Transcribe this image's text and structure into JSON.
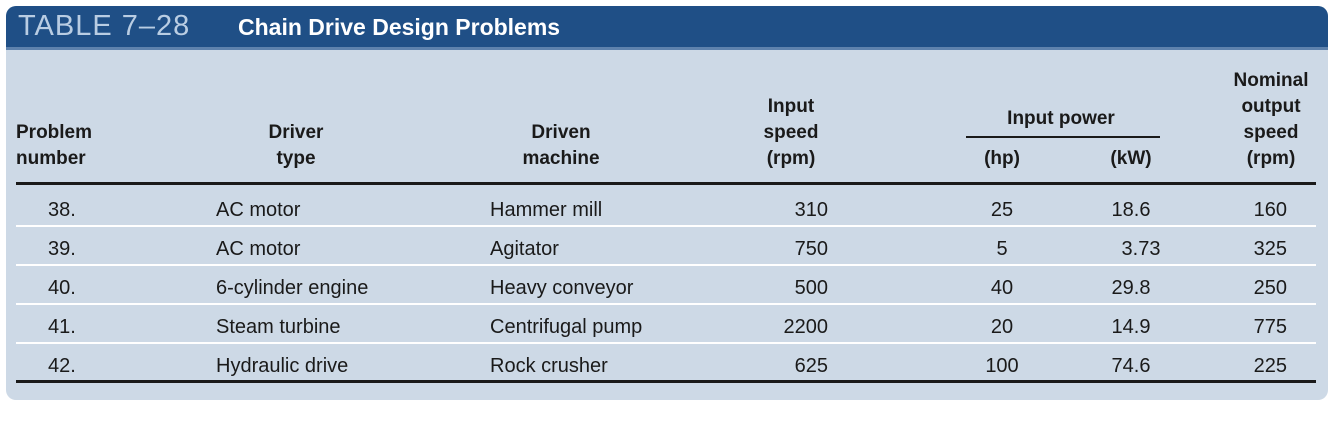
{
  "title": {
    "tag": "TABLE 7–28",
    "text": "Chain Drive Design Problems"
  },
  "headers": {
    "problem": "Problem\nnumber",
    "driver": "Driver\ntype",
    "driven": "Driven\nmachine",
    "input_speed": "Input\nspeed\n(rpm)",
    "input_power": "Input power",
    "hp": "(hp)",
    "kw": "(kW)",
    "output_speed": "Nominal\noutput\nspeed\n(rpm)"
  },
  "rows": [
    {
      "problem": "38.",
      "driver": "AC motor",
      "driven": "Hammer mill",
      "speed": "310",
      "hp": "25",
      "kw": "18.6",
      "output": "160"
    },
    {
      "problem": "39.",
      "driver": "AC motor",
      "driven": "Agitator",
      "speed": "750",
      "hp": "5",
      "kw": "3.73",
      "output": "325"
    },
    {
      "problem": "40.",
      "driver": "6-cylinder engine",
      "driven": "Heavy conveyor",
      "speed": "500",
      "hp": "40",
      "kw": "29.8",
      "output": "250"
    },
    {
      "problem": "41.",
      "driver": "Steam turbine",
      "driven": "Centrifugal pump",
      "speed": "2200",
      "hp": "20",
      "kw": "14.9",
      "output": "775"
    },
    {
      "problem": "42.",
      "driver": "Hydraulic drive",
      "driven": "Rock crusher",
      "speed": "625",
      "hp": "100",
      "kw": "74.6",
      "output": "225"
    }
  ],
  "colors": {
    "title_bar": "#1f4f86",
    "table_bg": "#cdd9e6",
    "title_tag": "#b9cde3"
  }
}
